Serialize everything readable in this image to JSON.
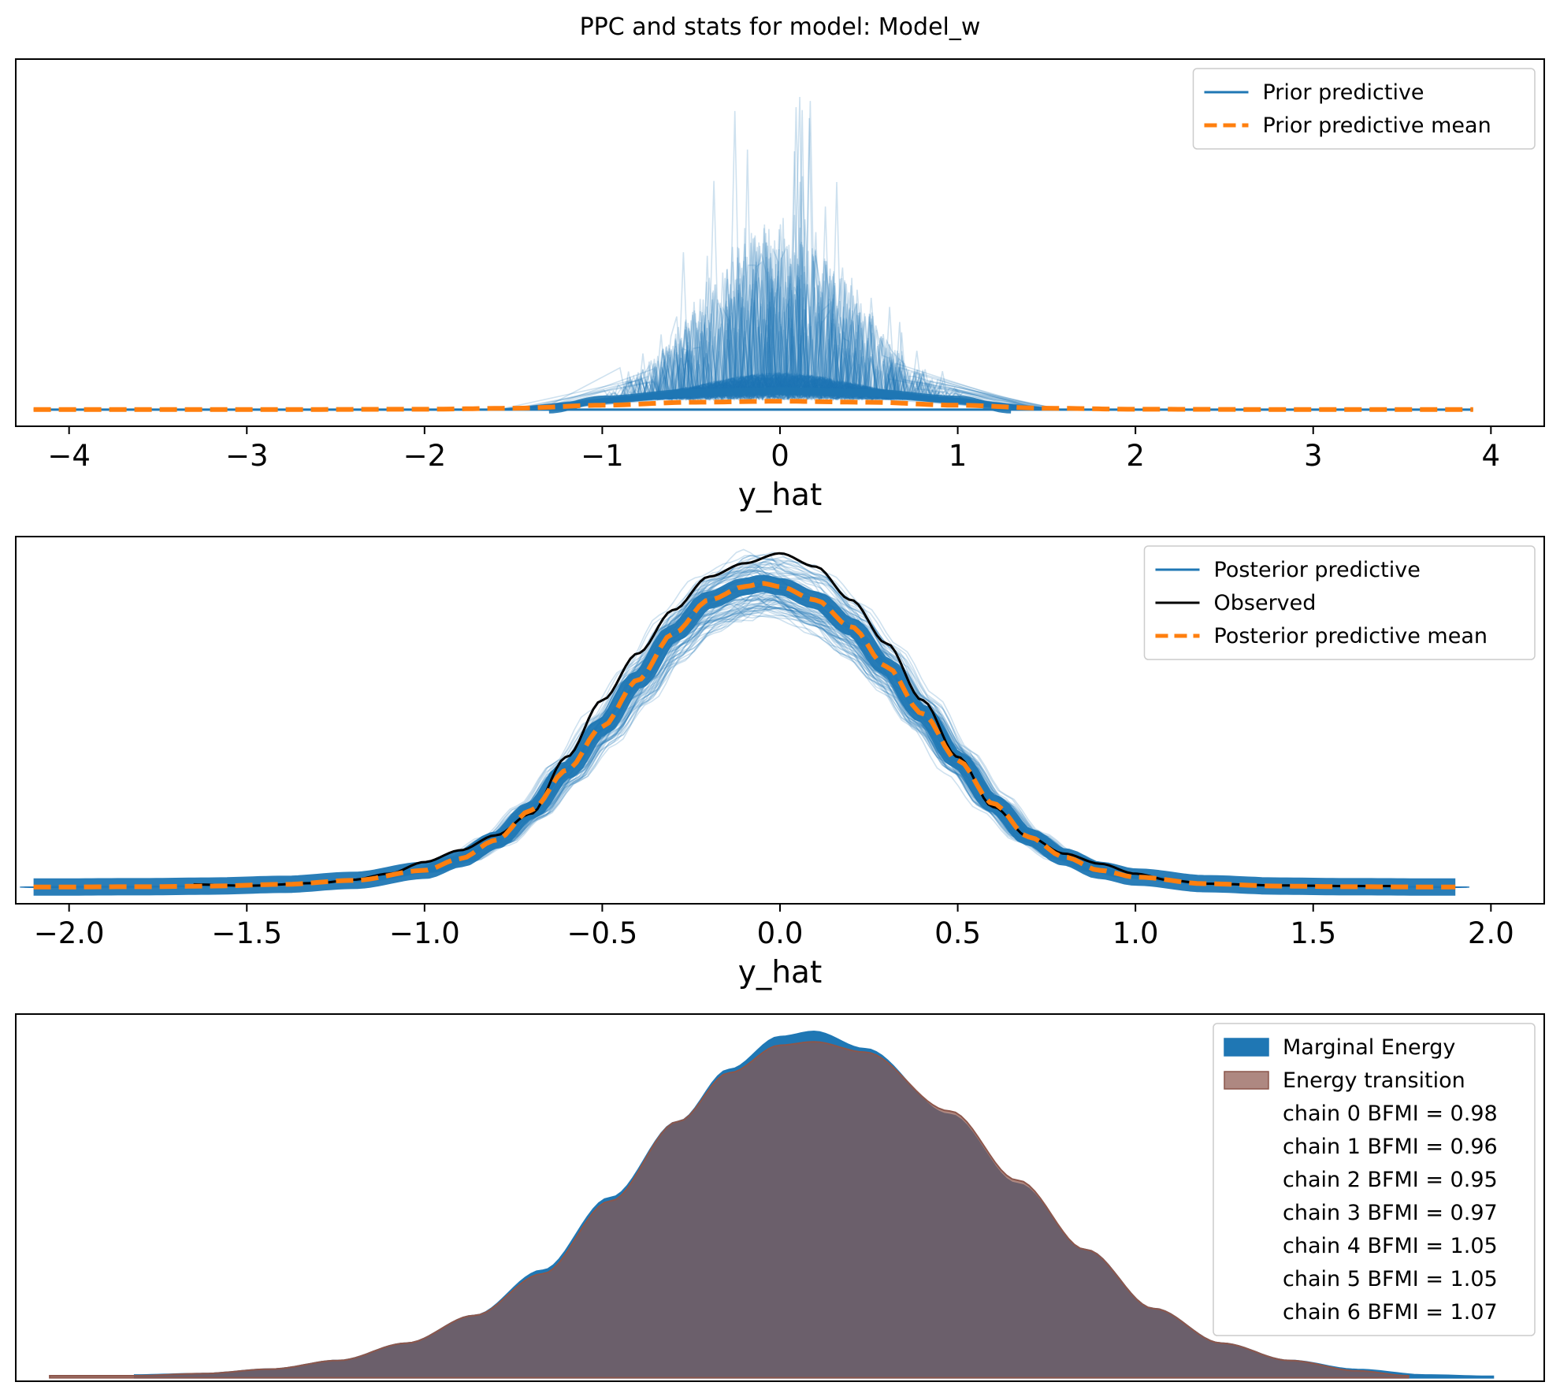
{
  "figure": {
    "title": "PPC and stats for model: Model_w"
  },
  "colors": {
    "prior": "#1f77b4",
    "mean": "#ff7f0e",
    "observed": "#000000",
    "marginal": "#1f77b4",
    "transition": "#8c564b"
  },
  "chart_data": [
    {
      "type": "line",
      "xlabel": "y_hat",
      "ylabel": "",
      "xlim": [
        -4.3,
        4.3
      ],
      "xticks": [
        -4,
        -3,
        -2,
        -1,
        0,
        1,
        2,
        3,
        4
      ],
      "xtick_labels": [
        "−4",
        "−3",
        "−2",
        "−1",
        "0",
        "1",
        "2",
        "3",
        "4"
      ],
      "yticks": "none",
      "legend_position": "upper right",
      "legend": [
        "Prior predictive",
        "Prior predictive mean"
      ],
      "series": [
        {
          "name": "Prior predictive",
          "style": "many thin translucent blue density curves with narrow spikes around 0",
          "support": [
            -1.6,
            1.6
          ],
          "spike_range": [
            -1.0,
            1.0
          ]
        },
        {
          "name": "Prior predictive mean",
          "style": "orange dashed",
          "x": [
            -4.2,
            -3.0,
            -2.0,
            -1.5,
            -1.0,
            -0.5,
            0.0,
            0.5,
            1.0,
            1.5,
            2.0,
            3.0,
            3.9
          ],
          "y": [
            0.0,
            0.0,
            0.001,
            0.004,
            0.013,
            0.022,
            0.025,
            0.022,
            0.013,
            0.004,
            0.001,
            0.0,
            0.0
          ]
        }
      ],
      "ylim": [
        -0.05,
        1.05
      ]
    },
    {
      "type": "line",
      "xlabel": "y_hat",
      "ylabel": "",
      "xlim": [
        -2.15,
        2.15
      ],
      "xticks": [
        -2.0,
        -1.5,
        -1.0,
        -0.5,
        0.0,
        0.5,
        1.0,
        1.5,
        2.0
      ],
      "xtick_labels": [
        "−2.0",
        "−1.5",
        "−1.0",
        "−0.5",
        "0.0",
        "0.5",
        "1.0",
        "1.5",
        "2.0"
      ],
      "yticks": "none",
      "legend_position": "upper right",
      "legend": [
        "Posterior predictive",
        "Observed",
        "Posterior predictive mean"
      ],
      "series": [
        {
          "name": "Posterior predictive",
          "style": "band of thin translucent blue density curves around the mean"
        },
        {
          "name": "Observed",
          "style": "black solid",
          "x": [
            -1.65,
            -1.5,
            -1.3,
            -1.2,
            -1.1,
            -1.0,
            -0.9,
            -0.8,
            -0.7,
            -0.6,
            -0.5,
            -0.4,
            -0.3,
            -0.2,
            -0.1,
            0.0,
            0.1,
            0.2,
            0.3,
            0.4,
            0.5,
            0.6,
            0.7,
            0.8,
            0.9,
            1.0,
            1.1,
            1.2,
            1.4,
            1.6,
            1.75
          ],
          "y": [
            0.008,
            0.004,
            0.012,
            0.022,
            0.04,
            0.075,
            0.11,
            0.155,
            0.22,
            0.39,
            0.56,
            0.7,
            0.83,
            0.93,
            0.97,
            1.0,
            0.96,
            0.86,
            0.73,
            0.56,
            0.39,
            0.24,
            0.15,
            0.1,
            0.07,
            0.04,
            0.02,
            0.01,
            0.005,
            0.003,
            0.003
          ]
        },
        {
          "name": "Posterior predictive mean",
          "style": "orange dashed",
          "x": [
            -2.1,
            -1.8,
            -1.6,
            -1.4,
            -1.2,
            -1.0,
            -0.9,
            -0.8,
            -0.7,
            -0.6,
            -0.5,
            -0.4,
            -0.3,
            -0.2,
            -0.1,
            -0.05,
            0.0,
            0.1,
            0.2,
            0.3,
            0.4,
            0.5,
            0.6,
            0.7,
            0.8,
            0.9,
            1.0,
            1.2,
            1.4,
            1.6,
            1.9
          ],
          "y": [
            0.0,
            0.001,
            0.003,
            0.008,
            0.02,
            0.05,
            0.085,
            0.14,
            0.23,
            0.35,
            0.48,
            0.62,
            0.76,
            0.86,
            0.9,
            0.91,
            0.9,
            0.86,
            0.78,
            0.66,
            0.52,
            0.38,
            0.25,
            0.15,
            0.09,
            0.05,
            0.03,
            0.01,
            0.003,
            0.001,
            0.0
          ]
        }
      ],
      "ylim": [
        -0.05,
        1.05
      ]
    },
    {
      "type": "area",
      "xlabel": "",
      "ylabel": "",
      "xticks": "none",
      "yticks": "none",
      "legend_position": "upper right",
      "legend": [
        "Marginal Energy",
        "Energy transition",
        "chain  0 BFMI = 0.98",
        "chain  1 BFMI = 0.96",
        "chain  2 BFMI = 0.95",
        "chain  3 BFMI = 0.97",
        "chain  4 BFMI = 1.05",
        "chain  5 BFMI = 1.05",
        "chain  6 BFMI = 1.07"
      ],
      "series": [
        {
          "name": "Marginal Energy",
          "x": [
            -3.8,
            -3.4,
            -3.0,
            -2.6,
            -2.2,
            -1.8,
            -1.4,
            -1.0,
            -0.6,
            -0.3,
            0.0,
            0.2,
            0.5,
            1.0,
            1.4,
            1.8,
            2.2,
            2.6,
            3.0,
            3.4,
            3.8,
            4.2
          ],
          "y": [
            0.008,
            0.012,
            0.025,
            0.05,
            0.1,
            0.18,
            0.31,
            0.52,
            0.74,
            0.89,
            0.985,
            1.0,
            0.95,
            0.76,
            0.56,
            0.37,
            0.2,
            0.1,
            0.05,
            0.024,
            0.008,
            0.004
          ]
        },
        {
          "name": "Energy transition",
          "x": [
            -4.3,
            -3.8,
            -3.4,
            -3.0,
            -2.6,
            -2.2,
            -1.8,
            -1.4,
            -1.0,
            -0.6,
            -0.3,
            0.0,
            0.2,
            0.5,
            1.0,
            1.4,
            1.8,
            2.2,
            2.6,
            3.0,
            3.4,
            3.7
          ],
          "y": [
            0.006,
            0.006,
            0.012,
            0.025,
            0.05,
            0.1,
            0.18,
            0.3,
            0.51,
            0.74,
            0.88,
            0.96,
            0.97,
            0.94,
            0.77,
            0.57,
            0.37,
            0.2,
            0.1,
            0.05,
            0.02,
            0.006
          ]
        }
      ],
      "xlim": [
        -4.5,
        4.5
      ],
      "ylim": [
        -0.01,
        1.05
      ]
    }
  ]
}
